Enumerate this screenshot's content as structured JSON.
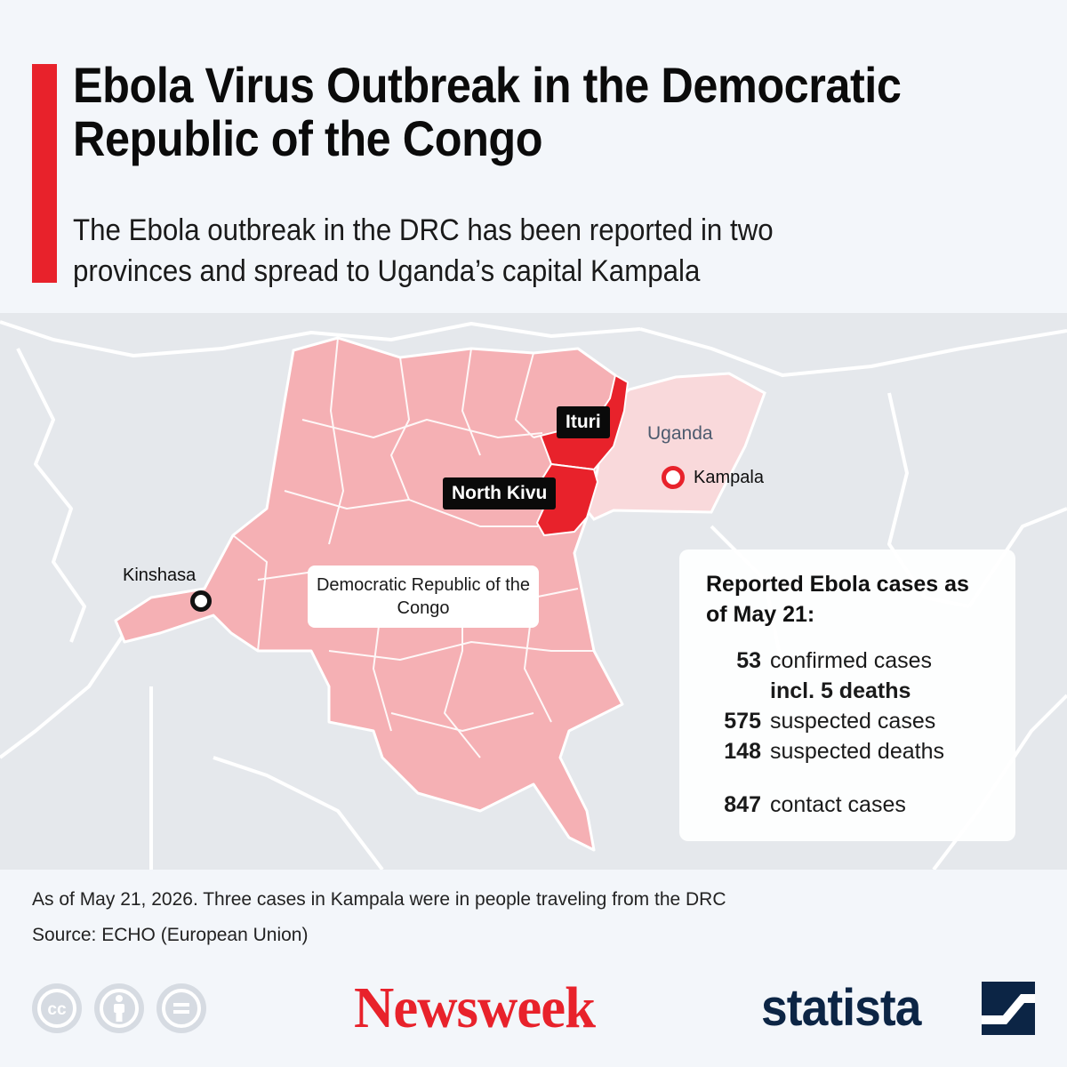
{
  "header": {
    "title": "Ebola Virus Outbreak in the Democratic Republic of the Congo",
    "subtitle": "The Ebola outbreak in the DRC has been reported in two provinces and spread to Uganda’s capital Kampala"
  },
  "colors": {
    "accent": "#e8222b",
    "drc_fill": "#f5b0b4",
    "outbreak_fill": "#e8222b",
    "uganda_fill": "#f9d9db",
    "neighbors_fill": "#e5e8ec",
    "background": "#f3f6fa",
    "newsweek_red": "#e8222b",
    "statista_navy": "#0c2545"
  },
  "map": {
    "provinces": [
      {
        "label": "Ituri",
        "status": "outbreak"
      },
      {
        "label": "North Kivu",
        "status": "outbreak"
      }
    ],
    "country_labels": {
      "uganda": "Uganda",
      "drc": "Democratic Republic of the Congo"
    },
    "cities": [
      {
        "label": "Kinshasa",
        "marker_color": "#111111"
      },
      {
        "label": "Kampala",
        "marker_color": "#e8222b"
      }
    ]
  },
  "stats": {
    "heading": "Reported Ebola cases as of May 21:",
    "rows": [
      {
        "value": "53",
        "label": "confirmed cases"
      },
      {
        "value": "",
        "label": "incl. 5 deaths"
      },
      {
        "value": "575",
        "label": "suspected cases"
      },
      {
        "value": "148",
        "label": "suspected deaths"
      },
      {
        "value": "847",
        "label": "contact cases"
      }
    ]
  },
  "footer": {
    "note": "As of May 21, 2026. Three cases in Kampala were in people traveling from the DRC",
    "source": "Source: ECHO (European Union)",
    "license_icons": [
      "creative-commons-icon",
      "attribution-icon",
      "no-derivatives-icon"
    ],
    "newsweek": "Newsweek",
    "statista": "statista"
  }
}
